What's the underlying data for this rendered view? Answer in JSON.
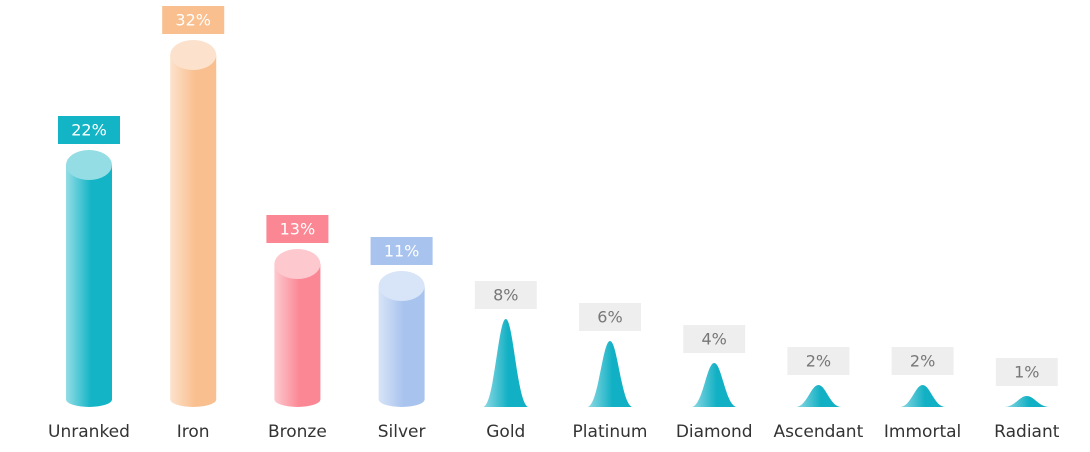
{
  "chart_data": {
    "type": "bar",
    "categories": [
      "Unranked",
      "Iron",
      "Bronze",
      "Silver",
      "Gold",
      "Platinum",
      "Diamond",
      "Ascendant",
      "Immortal",
      "Radiant"
    ],
    "values": [
      22,
      32,
      13,
      11,
      8,
      6,
      4,
      2,
      2,
      1
    ],
    "value_labels": [
      "22%",
      "32%",
      "13%",
      "11%",
      "8%",
      "6%",
      "4%",
      "2%",
      "2%",
      "1%"
    ],
    "shapes": [
      "cylinder",
      "cylinder",
      "cylinder",
      "cylinder",
      "bell",
      "bell",
      "bell",
      "bell",
      "bell",
      "bell"
    ],
    "colors": [
      "#12b4c6",
      "#f9bf8e",
      "#fb8794",
      "#a8c3ee",
      "#12b0c4",
      "#12b0c4",
      "#12b0c4",
      "#12b0c4",
      "#12b0c4",
      "#12b0c4"
    ],
    "label_colors": [
      "#12b4c6",
      "#f9bf8e",
      "#fb8794",
      "#a8c3ee",
      "#eeeeee",
      "#eeeeee",
      "#eeeeee",
      "#eeeeee",
      "#eeeeee",
      "#eeeeee"
    ]
  }
}
